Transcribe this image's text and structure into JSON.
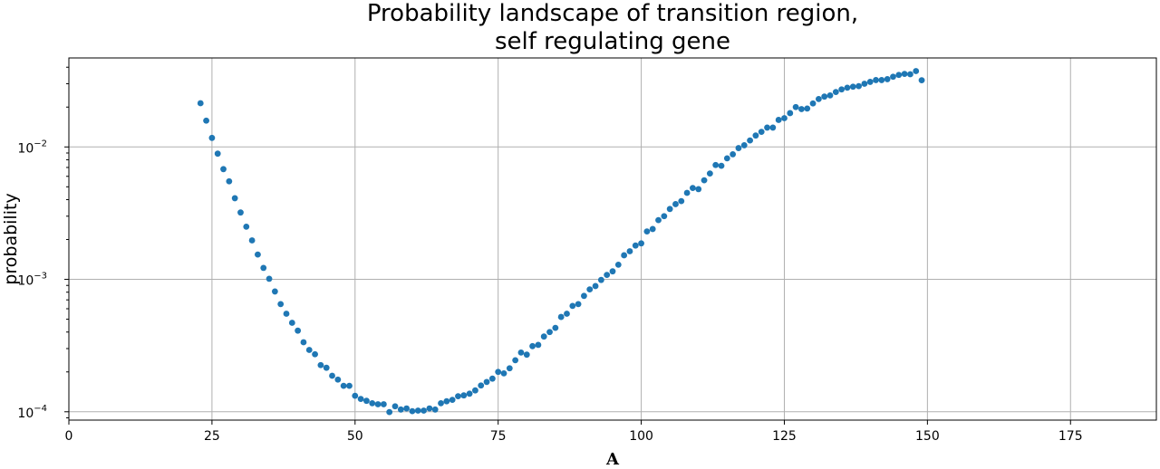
{
  "chart_data": {
    "type": "scatter",
    "title": [
      "Probability landscape of transition region,",
      "self regulating gene"
    ],
    "xlabel": "A",
    "ylabel": "probability",
    "xlim": [
      0,
      190
    ],
    "ylim": [
      8.65e-05,
      0.047
    ],
    "yscale": "log",
    "grid": true,
    "marker_color": "#1f77b4",
    "x_ticks": [
      0,
      25,
      50,
      75,
      100,
      125,
      150,
      175
    ],
    "y_ticks": [
      {
        "value": 0.0001,
        "mantissa": "10",
        "exponent": "−4"
      },
      {
        "value": 0.001,
        "mantissa": "10",
        "exponent": "−3"
      },
      {
        "value": 0.01,
        "mantissa": "10",
        "exponent": "−2"
      }
    ],
    "points": [
      [
        23,
        0.0214
      ],
      [
        24,
        0.0158
      ],
      [
        25,
        0.0117
      ],
      [
        26,
        0.0089
      ],
      [
        27,
        0.0068
      ],
      [
        28,
        0.0055
      ],
      [
        29,
        0.0041
      ],
      [
        30,
        0.0032
      ],
      [
        31,
        0.0025
      ],
      [
        32,
        0.00197
      ],
      [
        33,
        0.00154
      ],
      [
        34,
        0.00122
      ],
      [
        35,
        0.00101
      ],
      [
        36,
        0.00081
      ],
      [
        37,
        0.00065
      ],
      [
        38,
        0.00055
      ],
      [
        39,
        0.00047
      ],
      [
        40,
        0.00041
      ],
      [
        41,
        0.000335
      ],
      [
        42,
        0.000293
      ],
      [
        43,
        0.000272
      ],
      [
        44,
        0.000225
      ],
      [
        45,
        0.000215
      ],
      [
        46,
        0.000187
      ],
      [
        47,
        0.000175
      ],
      [
        48,
        0.000157
      ],
      [
        49,
        0.000157
      ],
      [
        50,
        0.000132
      ],
      [
        51,
        0.000125
      ],
      [
        52,
        0.000121
      ],
      [
        53,
        0.000116
      ],
      [
        54,
        0.000114
      ],
      [
        55,
        0.000114
      ],
      [
        56,
        9.95e-05
      ],
      [
        57,
        0.00011
      ],
      [
        58,
        0.000104
      ],
      [
        59,
        0.000106
      ],
      [
        60,
        0.000101
      ],
      [
        61,
        0.000102
      ],
      [
        62,
        0.000102
      ],
      [
        63,
        0.000106
      ],
      [
        64,
        0.000104
      ],
      [
        65,
        0.000116
      ],
      [
        66,
        0.00012
      ],
      [
        67,
        0.000123
      ],
      [
        68,
        0.000131
      ],
      [
        69,
        0.000133
      ],
      [
        70,
        0.000137
      ],
      [
        71,
        0.000145
      ],
      [
        72,
        0.000158
      ],
      [
        73,
        0.000168
      ],
      [
        74,
        0.000178
      ],
      [
        75,
        0.0002
      ],
      [
        76,
        0.000195
      ],
      [
        77,
        0.000213
      ],
      [
        78,
        0.000245
      ],
      [
        79,
        0.00028
      ],
      [
        80,
        0.00027
      ],
      [
        81,
        0.000313
      ],
      [
        82,
        0.00032
      ],
      [
        83,
        0.00037
      ],
      [
        84,
        0.0004
      ],
      [
        85,
        0.00043
      ],
      [
        86,
        0.00052
      ],
      [
        87,
        0.00055
      ],
      [
        88,
        0.00063
      ],
      [
        89,
        0.00065
      ],
      [
        90,
        0.00075
      ],
      [
        91,
        0.00084
      ],
      [
        92,
        0.00089
      ],
      [
        93,
        0.00099
      ],
      [
        94,
        0.00108
      ],
      [
        95,
        0.00115
      ],
      [
        96,
        0.00129
      ],
      [
        97,
        0.00152
      ],
      [
        98,
        0.00163
      ],
      [
        99,
        0.0018
      ],
      [
        100,
        0.00187
      ],
      [
        101,
        0.0023
      ],
      [
        102,
        0.0024
      ],
      [
        103,
        0.0028
      ],
      [
        104,
        0.003
      ],
      [
        105,
        0.0034
      ],
      [
        106,
        0.0037
      ],
      [
        107,
        0.0039
      ],
      [
        108,
        0.0045
      ],
      [
        109,
        0.0049
      ],
      [
        110,
        0.0048
      ],
      [
        111,
        0.0056
      ],
      [
        112,
        0.0063
      ],
      [
        113,
        0.0073
      ],
      [
        114,
        0.0072
      ],
      [
        115,
        0.0082
      ],
      [
        116,
        0.0088
      ],
      [
        117,
        0.0098
      ],
      [
        118,
        0.0103
      ],
      [
        119,
        0.0112
      ],
      [
        120,
        0.0122
      ],
      [
        121,
        0.013
      ],
      [
        122,
        0.014
      ],
      [
        123,
        0.014
      ],
      [
        124,
        0.016
      ],
      [
        125,
        0.0165
      ],
      [
        126,
        0.018
      ],
      [
        127,
        0.02
      ],
      [
        128,
        0.0193
      ],
      [
        129,
        0.0195
      ],
      [
        130,
        0.0213
      ],
      [
        131,
        0.023
      ],
      [
        132,
        0.024
      ],
      [
        133,
        0.0245
      ],
      [
        134,
        0.026
      ],
      [
        135,
        0.0272
      ],
      [
        136,
        0.028
      ],
      [
        137,
        0.0285
      ],
      [
        138,
        0.0288
      ],
      [
        139,
        0.03
      ],
      [
        140,
        0.031
      ],
      [
        141,
        0.032
      ],
      [
        142,
        0.032
      ],
      [
        143,
        0.0325
      ],
      [
        144,
        0.0339
      ],
      [
        145,
        0.035
      ],
      [
        146,
        0.0356
      ],
      [
        147,
        0.0354
      ],
      [
        148,
        0.0374
      ],
      [
        149,
        0.0319
      ]
    ]
  }
}
